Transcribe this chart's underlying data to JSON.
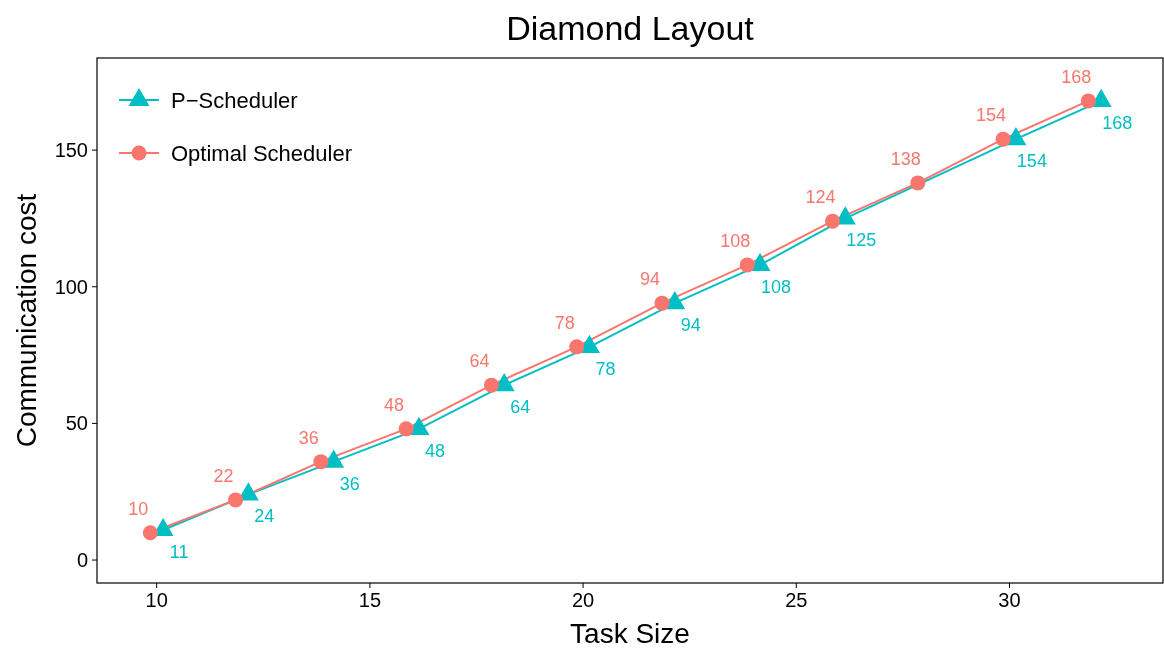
{
  "chart_data": {
    "type": "line",
    "title": "Diamond Layout",
    "xlabel": "Task Size",
    "ylabel": "Communication cost",
    "xlim": [
      8.6,
      33.6
    ],
    "ylim": [
      -8.4,
      183.7
    ],
    "xticks": [
      10,
      15,
      20,
      25,
      30
    ],
    "yticks": [
      0,
      50,
      100,
      150
    ],
    "grid": false,
    "legend": "top left",
    "data_labels": true,
    "series": [
      {
        "name": "P−Scheduler",
        "color": "#00bfc4",
        "marker": "triangle",
        "x": [
          10.15,
          12.15,
          14.15,
          16.15,
          18.15,
          20.15,
          22.15,
          24.15,
          26.15,
          30.15,
          32.15
        ],
        "values": [
          11,
          24,
          36,
          48,
          64,
          78,
          94,
          108,
          125,
          154,
          168
        ]
      },
      {
        "name": "Optimal Scheduler",
        "color": "#f8766d",
        "marker": "circle",
        "x": [
          9.85,
          11.85,
          13.85,
          15.85,
          17.85,
          19.85,
          21.85,
          23.85,
          25.85,
          27.85,
          29.85,
          31.85
        ],
        "values": [
          10,
          22,
          36,
          48,
          64,
          78,
          94,
          108,
          124,
          138,
          154,
          168
        ]
      }
    ]
  }
}
